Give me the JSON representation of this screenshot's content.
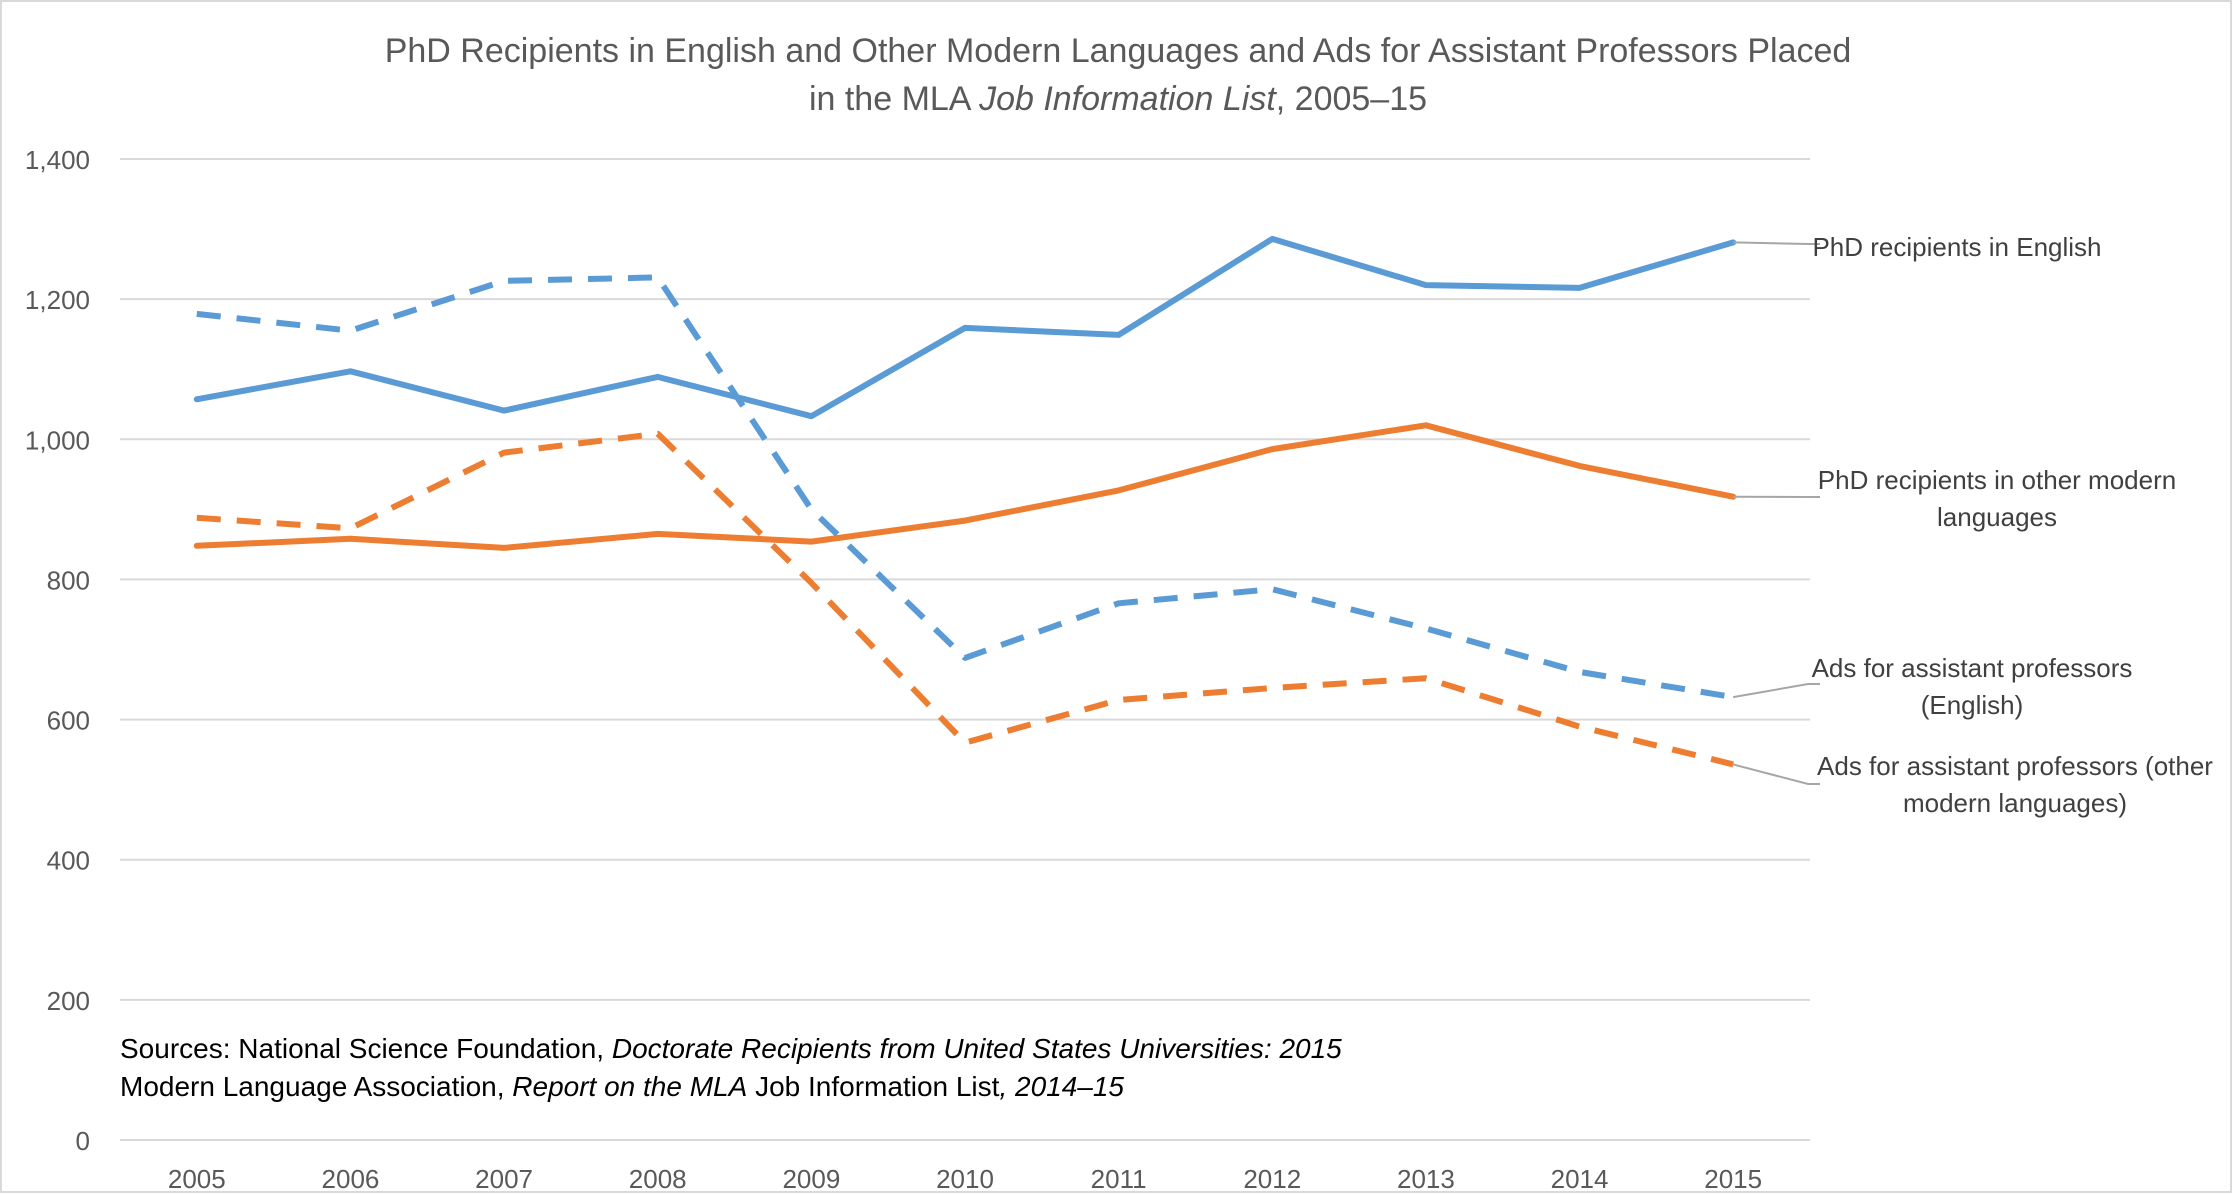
{
  "chart_data": {
    "type": "line",
    "title": {
      "line1": "PhD Recipients in English and Other Modern Languages and Ads for Assistant Professors Placed",
      "line2_prefix": "in the MLA ",
      "line2_italic": "Job Information List",
      "line2_suffix": ", 2005–15"
    },
    "xlabel": "",
    "ylabel": "",
    "x": [
      "2005",
      "2006",
      "2007",
      "2008",
      "2009",
      "2010",
      "2011",
      "2012",
      "2013",
      "2014",
      "2015"
    ],
    "ylim": [
      0,
      1400
    ],
    "yticks": [
      0,
      200,
      400,
      600,
      800,
      1000,
      1200,
      1400
    ],
    "ytick_labels": [
      "0",
      "200",
      "400",
      "600",
      "800",
      "1,000",
      "1,200",
      "1,400"
    ],
    "grid": true,
    "legend": "direct labels at right",
    "series": [
      {
        "name": "PhD recipients in English",
        "label_lines": [
          "PhD recipients in English"
        ],
        "values": [
          1057,
          1097,
          1041,
          1089,
          1033,
          1159,
          1149,
          1286,
          1220,
          1216,
          1281
        ],
        "color": "#5b9bd5",
        "style": "solid"
      },
      {
        "name": "PhD recipients in other modern languages",
        "label_lines": [
          "PhD recipients in other modern",
          "languages"
        ],
        "values": [
          848,
          858,
          845,
          865,
          854,
          884,
          927,
          986,
          1020,
          962,
          918
        ],
        "color": "#ed7d31",
        "style": "solid"
      },
      {
        "name": "Ads for assistant professors (English)",
        "label_lines": [
          "Ads for assistant professors",
          "(English)"
        ],
        "values": [
          1179,
          1155,
          1226,
          1231,
          900,
          688,
          766,
          786,
          730,
          668,
          632
        ],
        "color": "#5b9bd5",
        "style": "dashed"
      },
      {
        "name": "Ads for assistant professors (other modern languages)",
        "label_lines": [
          "Ads for assistant professors (other",
          "modern languages)"
        ],
        "values": [
          888,
          873,
          981,
          1008,
          795,
          567,
          628,
          645,
          659,
          590,
          536
        ],
        "color": "#ed7d31",
        "style": "dashed"
      }
    ],
    "sources": {
      "line1_prefix": "Sources: National Science Foundation, ",
      "line1_italic": "Doctorate Recipients from United States Universities: 2015",
      "line2_prefix": "Modern Language Association, ",
      "line2_italic": "Report on the MLA",
      "line2_middle": " Job Information List",
      "line2_italic_suffix": ", 2014–15"
    }
  }
}
